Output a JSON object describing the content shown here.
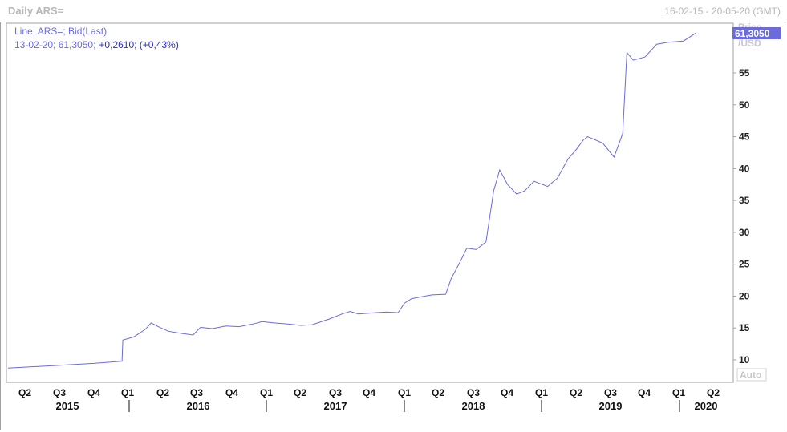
{
  "window": {
    "title": "Daily ARS=",
    "date_range": "16-02-15 - 20-05-20 (GMT)"
  },
  "legend": {
    "line1": "Line; ARS=; Bid(Last)",
    "line2_prefix": "13-02-20; 61,3050;",
    "line2_change": "+0,2610; (+0,43%)"
  },
  "axis": {
    "unit_top": "Price",
    "unit_bottom": "/USD",
    "last_value_label": "61,3050",
    "auto_label": "Auto"
  },
  "colors": {
    "line": "#6b6bdc",
    "last_value_bg": "#6b6bdc",
    "frame": "#a0a0a0"
  },
  "chart_data": {
    "type": "line",
    "title": "Daily ARS=",
    "ylabel": "Price /USD",
    "ylim": [
      7.5,
      63
    ],
    "y_ticks": [
      10,
      15,
      20,
      25,
      30,
      35,
      40,
      45,
      50,
      55
    ],
    "quarter_ticks": [
      "Q2",
      "Q3",
      "Q4",
      "Q1",
      "Q2",
      "Q3",
      "Q4",
      "Q1",
      "Q2",
      "Q3",
      "Q4",
      "Q1",
      "Q2",
      "Q3",
      "Q4",
      "Q1",
      "Q2",
      "Q3",
      "Q4",
      "Q1",
      "Q2"
    ],
    "year_labels": [
      "2015",
      "2016",
      "2017",
      "2018",
      "2019",
      "2020"
    ],
    "series": [
      {
        "name": "ARS= Bid(Last)",
        "points": [
          [
            "2015-02-16",
            8.7
          ],
          [
            "2015-04-01",
            8.85
          ],
          [
            "2015-06-01",
            9.05
          ],
          [
            "2015-08-01",
            9.25
          ],
          [
            "2015-10-01",
            9.45
          ],
          [
            "2015-12-15",
            9.8
          ],
          [
            "2015-12-17",
            13.1
          ],
          [
            "2016-01-15",
            13.6
          ],
          [
            "2016-02-15",
            14.8
          ],
          [
            "2016-03-01",
            15.8
          ],
          [
            "2016-03-20",
            15.2
          ],
          [
            "2016-04-15",
            14.5
          ],
          [
            "2016-05-15",
            14.2
          ],
          [
            "2016-06-20",
            13.9
          ],
          [
            "2016-07-10",
            15.1
          ],
          [
            "2016-08-10",
            14.9
          ],
          [
            "2016-09-15",
            15.3
          ],
          [
            "2016-10-20",
            15.2
          ],
          [
            "2016-12-01",
            15.7
          ],
          [
            "2016-12-20",
            16.0
          ],
          [
            "2017-01-20",
            15.8
          ],
          [
            "2017-03-01",
            15.6
          ],
          [
            "2017-04-01",
            15.4
          ],
          [
            "2017-05-01",
            15.5
          ],
          [
            "2017-06-15",
            16.4
          ],
          [
            "2017-07-20",
            17.2
          ],
          [
            "2017-08-10",
            17.6
          ],
          [
            "2017-09-01",
            17.2
          ],
          [
            "2017-10-15",
            17.4
          ],
          [
            "2017-11-15",
            17.5
          ],
          [
            "2017-12-15",
            17.4
          ],
          [
            "2018-01-01",
            18.9
          ],
          [
            "2018-01-20",
            19.6
          ],
          [
            "2018-02-15",
            19.9
          ],
          [
            "2018-03-15",
            20.2
          ],
          [
            "2018-04-20",
            20.3
          ],
          [
            "2018-05-05",
            22.8
          ],
          [
            "2018-05-25",
            25.0
          ],
          [
            "2018-06-15",
            27.5
          ],
          [
            "2018-07-10",
            27.3
          ],
          [
            "2018-08-05",
            28.5
          ],
          [
            "2018-08-25",
            36.5
          ],
          [
            "2018-09-10",
            39.8
          ],
          [
            "2018-10-01",
            37.5
          ],
          [
            "2018-10-25",
            36.0
          ],
          [
            "2018-11-15",
            36.5
          ],
          [
            "2018-12-10",
            38.0
          ],
          [
            "2019-01-15",
            37.2
          ],
          [
            "2019-02-10",
            38.5
          ],
          [
            "2019-03-10",
            41.5
          ],
          [
            "2019-04-01",
            43.0
          ],
          [
            "2019-04-20",
            44.5
          ],
          [
            "2019-05-01",
            45.0
          ],
          [
            "2019-06-10",
            44.0
          ],
          [
            "2019-07-10",
            41.8
          ],
          [
            "2019-08-02",
            45.5
          ],
          [
            "2019-08-13",
            58.2
          ],
          [
            "2019-08-30",
            57.0
          ],
          [
            "2019-09-30",
            57.5
          ],
          [
            "2019-10-31",
            59.5
          ],
          [
            "2019-12-01",
            59.8
          ],
          [
            "2020-01-10",
            60.0
          ],
          [
            "2020-02-13",
            61.305
          ]
        ]
      }
    ]
  }
}
